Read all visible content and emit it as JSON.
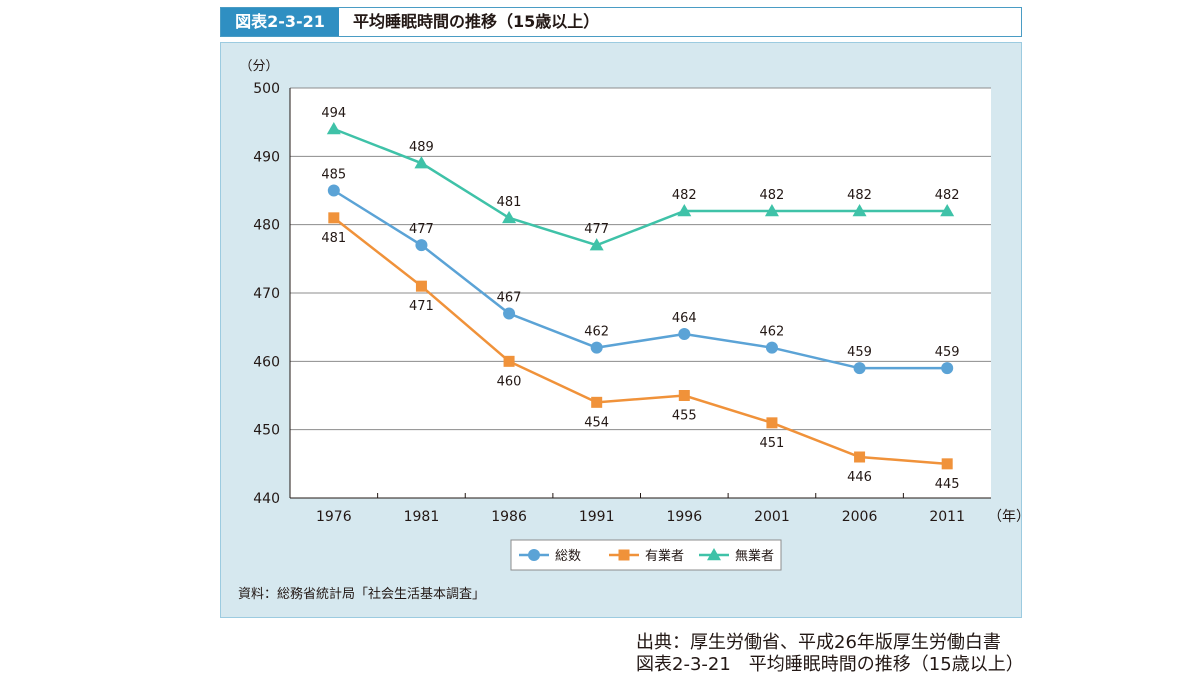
{
  "header": {
    "figure_number": "図表2-3-21",
    "title": "平均睡眠時間の推移（15歳以上）"
  },
  "note": "資料：総務省統計局「社会生活基本調査」",
  "source": {
    "line1": "出典：厚生労働省、平成26年版厚生労働白書",
    "line2": "図表2-3-21　平均睡眠時間の推移（15歳以上）"
  },
  "colors": {
    "series_blue": "#5ba3d6",
    "series_orange": "#f0923a",
    "series_teal": "#3fc2a8",
    "panel_bg": "#d6e8ef",
    "tag_bg": "#2f8fc2"
  },
  "chart_data": {
    "type": "line",
    "title": "平均睡眠時間の推移（15歳以上）",
    "ylabel": "（分）",
    "xlabel": "（年）",
    "ylim": [
      440,
      500
    ],
    "yticks": [
      440,
      450,
      460,
      470,
      480,
      490,
      500
    ],
    "grid": true,
    "legend_position": "bottom",
    "x": [
      "1976",
      "1981",
      "1986",
      "1991",
      "1996",
      "2001",
      "2006",
      "2011"
    ],
    "series": [
      {
        "name": "総数",
        "marker": "circle",
        "color": "#5ba3d6",
        "label_position": "above",
        "values": [
          485,
          477,
          467,
          462,
          464,
          462,
          459,
          459
        ]
      },
      {
        "name": "有業者",
        "marker": "square",
        "color": "#f0923a",
        "label_position": "below",
        "values": [
          481,
          471,
          460,
          454,
          455,
          451,
          446,
          445
        ]
      },
      {
        "name": "無業者",
        "marker": "triangle",
        "color": "#3fc2a8",
        "label_position": "above",
        "values": [
          494,
          489,
          481,
          477,
          482,
          482,
          482,
          482
        ]
      }
    ]
  }
}
